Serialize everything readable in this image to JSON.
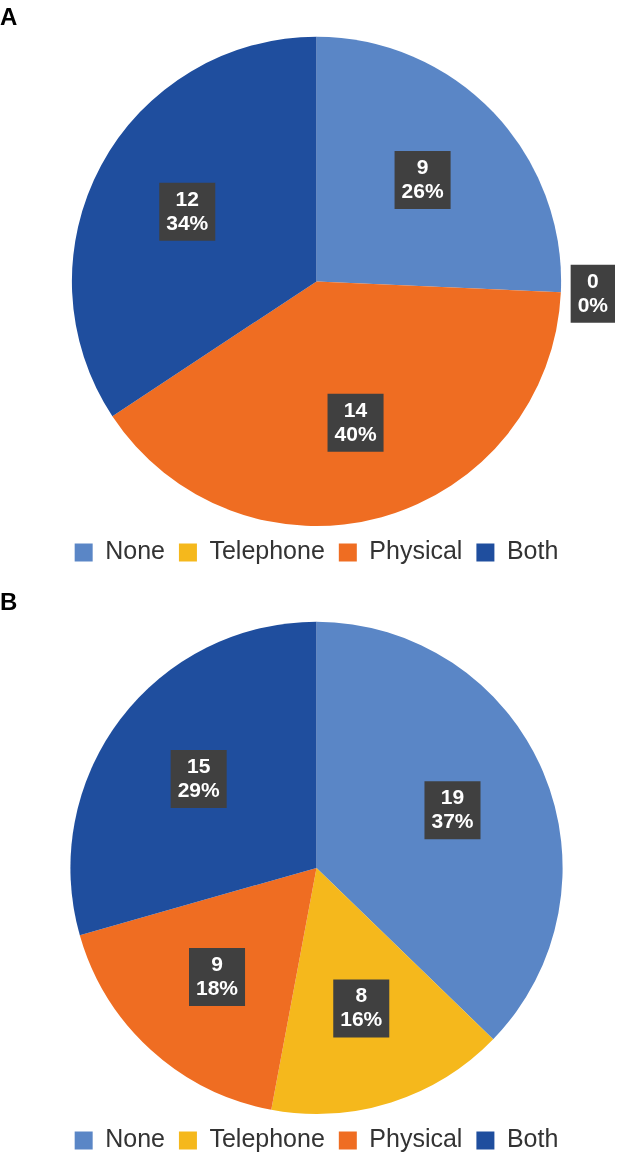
{
  "chart_data": [
    {
      "type": "pie",
      "title": "A",
      "categories": [
        "None",
        "Telephone",
        "Physical",
        "Both"
      ],
      "values": [
        9,
        0,
        14,
        12
      ],
      "colors": [
        "#5a86c6",
        "#f5b81c",
        "#ef6d22",
        "#1f4e9e"
      ],
      "value_labels": [
        "9\n26%",
        "0\n0%",
        "14\n40%",
        "12\n34%"
      ],
      "legend": "bottom"
    },
    {
      "type": "pie",
      "title": "B",
      "categories": [
        "None",
        "Telephone",
        "Physical",
        "Both"
      ],
      "values": [
        19,
        8,
        9,
        15
      ],
      "colors": [
        "#5a86c6",
        "#f5b81c",
        "#ef6d22",
        "#1f4e9e"
      ],
      "value_labels": [
        "19\n37%",
        "8\n16%",
        "9\n18%",
        "15\n29%"
      ],
      "legend": "bottom"
    }
  ]
}
